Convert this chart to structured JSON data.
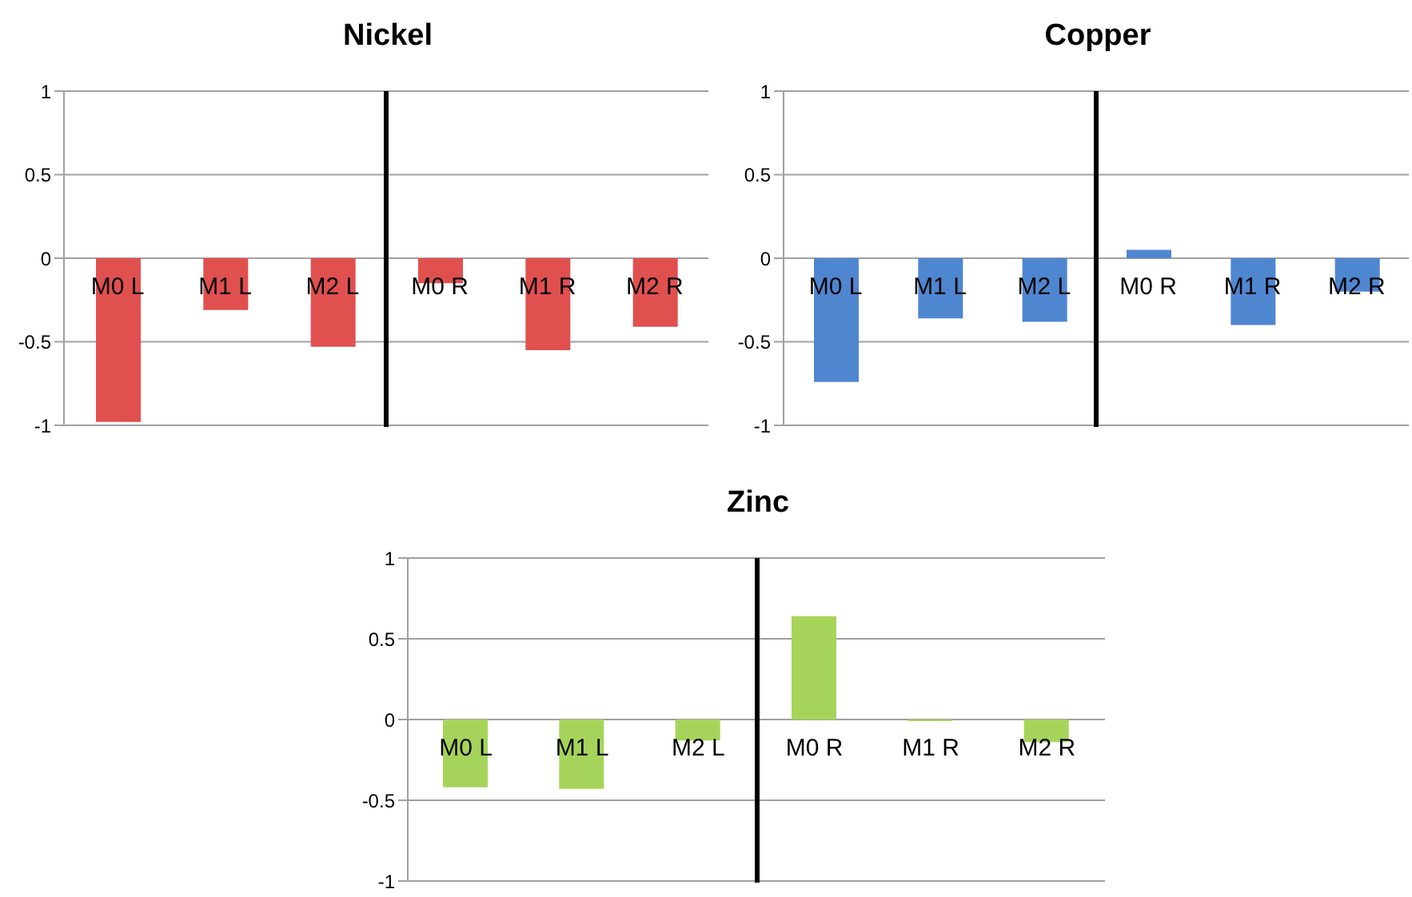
{
  "chart_data": [
    {
      "type": "bar",
      "title": "Nickel",
      "categories": [
        "M0 L",
        "M1 L",
        "M2 L",
        "M0 R",
        "M1 R",
        "M2 R"
      ],
      "values": [
        -0.98,
        -0.31,
        -0.53,
        -0.15,
        -0.55,
        -0.41
      ],
      "color": "#e0504f",
      "ylim": [
        -1,
        1
      ],
      "yticks": [
        -1,
        -0.5,
        0,
        0.5,
        1
      ],
      "grid": "y"
    },
    {
      "type": "bar",
      "title": "Copper",
      "categories": [
        "M0 L",
        "M1 L",
        "M2 L",
        "M0 R",
        "M1 R",
        "M2 R"
      ],
      "values": [
        -0.74,
        -0.36,
        -0.38,
        0.05,
        -0.4,
        -0.2
      ],
      "color": "#4f86d0",
      "ylim": [
        -1,
        1
      ],
      "yticks": [
        -1,
        -0.5,
        0,
        0.5,
        1
      ],
      "grid": "y"
    },
    {
      "type": "bar",
      "title": "Zinc",
      "categories": [
        "M0 L",
        "M1 L",
        "M2 L",
        "M0 R",
        "M1 R",
        "M2 R"
      ],
      "values": [
        -0.42,
        -0.43,
        -0.13,
        0.64,
        -0.01,
        -0.14
      ],
      "color": "#a6d45a",
      "ylim": [
        -1,
        1
      ],
      "yticks": [
        -1,
        -0.5,
        0,
        0.5,
        1
      ],
      "grid": "y"
    }
  ]
}
